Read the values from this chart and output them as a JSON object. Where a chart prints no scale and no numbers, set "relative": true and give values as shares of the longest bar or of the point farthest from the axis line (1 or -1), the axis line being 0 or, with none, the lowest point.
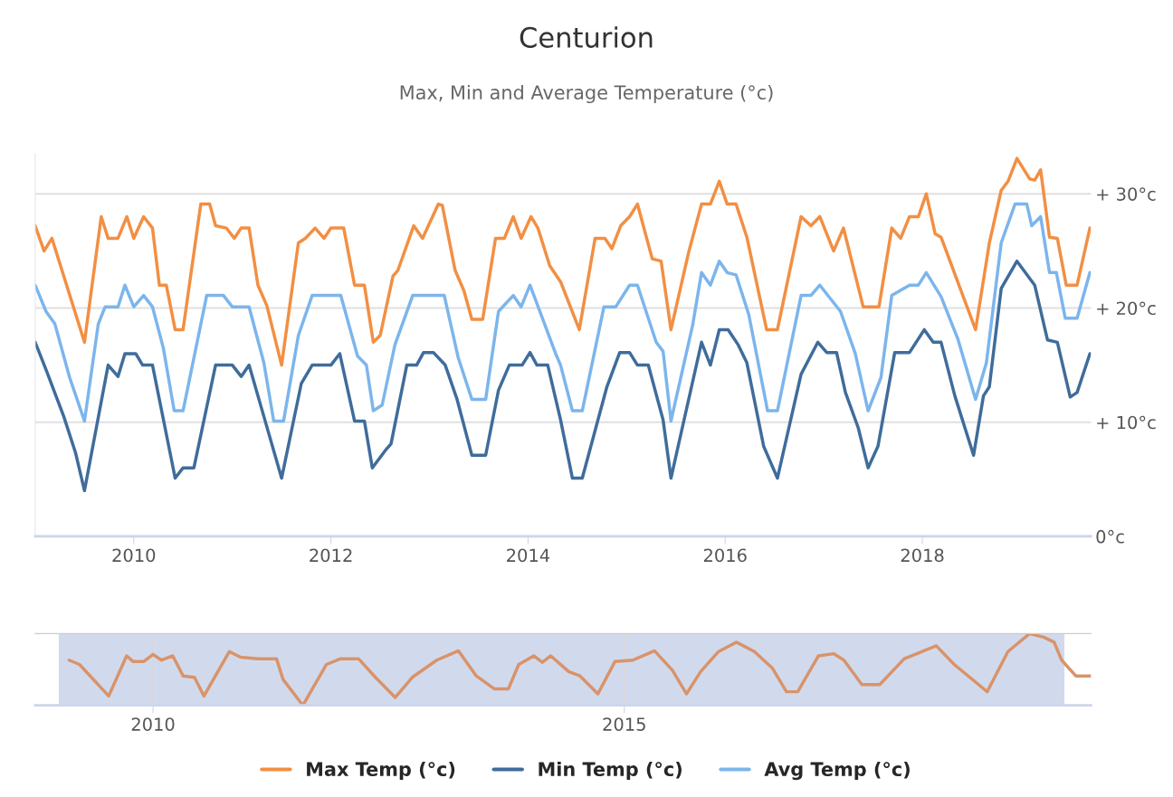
{
  "chart_data": [
    {
      "type": "line",
      "title": "Centurion",
      "subtitle": "Max, Min and Average Temperature (°c)",
      "xlim": [
        2009.0,
        2019.71
      ],
      "xticks": [
        2010,
        2012,
        2014,
        2016,
        2018
      ],
      "ylim": [
        0,
        33.5
      ],
      "yticks": [
        {
          "value": 0,
          "label": "0°c"
        },
        {
          "value": 10,
          "label": "+ 10°c"
        },
        {
          "value": 20,
          "label": "+ 20°c"
        },
        {
          "value": 30,
          "label": "+ 30°c"
        }
      ],
      "grid": "y",
      "legend": "bottom",
      "series": [
        {
          "name": "Max Temp (°c)",
          "color": "#f28f43",
          "x": [
            2009.0,
            2009.09,
            2009.17,
            2009.5,
            2009.67,
            2009.74,
            2009.84,
            2009.93,
            2010.0,
            2010.1,
            2010.19,
            2010.26,
            2010.33,
            2010.42,
            2010.5,
            2010.68,
            2010.77,
            2010.83,
            2010.94,
            2011.02,
            2011.09,
            2011.17,
            2011.26,
            2011.35,
            2011.5,
            2011.67,
            2011.74,
            2011.84,
            2011.93,
            2012.0,
            2012.13,
            2012.24,
            2012.34,
            2012.43,
            2012.5,
            2012.63,
            2012.68,
            2012.84,
            2012.93,
            2013.09,
            2013.13,
            2013.26,
            2013.35,
            2013.43,
            2013.54,
            2013.67,
            2013.76,
            2013.85,
            2013.93,
            2014.03,
            2014.1,
            2014.22,
            2014.33,
            2014.52,
            2014.68,
            2014.78,
            2014.85,
            2014.94,
            2015.03,
            2015.11,
            2015.26,
            2015.35,
            2015.45,
            2015.63,
            2015.76,
            2015.85,
            2015.94,
            2016.02,
            2016.11,
            2016.22,
            2016.42,
            2016.53,
            2016.77,
            2016.87,
            2016.96,
            2017.1,
            2017.2,
            2017.4,
            2017.56,
            2017.69,
            2017.78,
            2017.87,
            2017.96,
            2018.04,
            2018.13,
            2018.19,
            2018.54,
            2018.68,
            2018.8,
            2018.87,
            2018.96,
            2019.09,
            2019.14,
            2019.2,
            2019.29,
            2019.37,
            2019.46,
            2019.57,
            2019.7
          ],
          "values": [
            27.2,
            25.0,
            26.1,
            17.0,
            28.0,
            26.1,
            26.1,
            28.0,
            26.1,
            28.0,
            27.0,
            22.0,
            22.0,
            18.1,
            18.1,
            29.1,
            29.1,
            27.2,
            27.0,
            26.1,
            27.0,
            27.0,
            22.0,
            20.2,
            15.0,
            25.7,
            26.1,
            27.0,
            26.1,
            27.0,
            27.0,
            22.0,
            22.0,
            17.0,
            17.6,
            22.8,
            23.3,
            27.2,
            26.1,
            29.1,
            29.0,
            23.3,
            21.5,
            19.0,
            19.0,
            26.1,
            26.1,
            28.0,
            26.1,
            28.0,
            27.0,
            23.7,
            22.3,
            18.1,
            26.1,
            26.1,
            25.2,
            27.2,
            28.0,
            29.1,
            24.3,
            24.1,
            18.1,
            24.9,
            29.1,
            29.1,
            31.1,
            29.1,
            29.1,
            26.2,
            18.1,
            18.1,
            28.0,
            27.2,
            28.0,
            25.0,
            27.0,
            20.1,
            20.1,
            27.0,
            26.1,
            28.0,
            28.0,
            30.0,
            26.5,
            26.2,
            18.1,
            25.7,
            30.3,
            31.1,
            33.1,
            31.3,
            31.2,
            32.1,
            26.2,
            26.1,
            22.0,
            22.0,
            27.0
          ]
        },
        {
          "name": "Min Temp (°c)",
          "color": "#3f6c9b",
          "x": [
            2009.0,
            2009.11,
            2009.29,
            2009.41,
            2009.5,
            2009.74,
            2009.84,
            2009.91,
            2010.02,
            2010.09,
            2010.19,
            2010.42,
            2010.5,
            2010.61,
            2010.83,
            2011.0,
            2011.09,
            2011.17,
            2011.32,
            2011.5,
            2011.7,
            2011.81,
            2012.0,
            2012.09,
            2012.24,
            2012.34,
            2012.42,
            2012.55,
            2012.61,
            2012.77,
            2012.87,
            2012.94,
            2013.04,
            2013.16,
            2013.28,
            2013.43,
            2013.57,
            2013.7,
            2013.81,
            2013.94,
            2014.02,
            2014.09,
            2014.2,
            2014.33,
            2014.45,
            2014.55,
            2014.8,
            2014.93,
            2015.03,
            2015.11,
            2015.22,
            2015.37,
            2015.45,
            2015.76,
            2015.85,
            2015.94,
            2016.03,
            2016.13,
            2016.22,
            2016.39,
            2016.53,
            2016.77,
            2016.94,
            2017.03,
            2017.13,
            2017.22,
            2017.35,
            2017.45,
            2017.55,
            2017.72,
            2017.87,
            2018.02,
            2018.11,
            2018.19,
            2018.33,
            2018.52,
            2018.62,
            2018.68,
            2018.8,
            2018.96,
            2019.14,
            2019.27,
            2019.37,
            2019.5,
            2019.57,
            2019.7
          ],
          "values": [
            17.0,
            14.6,
            10.5,
            7.3,
            4.0,
            15.0,
            14.0,
            16.0,
            16.0,
            15.0,
            15.0,
            5.1,
            6.0,
            6.0,
            15.0,
            15.0,
            14.0,
            15.0,
            10.5,
            5.1,
            13.4,
            15.0,
            15.0,
            16.0,
            10.1,
            10.1,
            6.0,
            7.5,
            8.1,
            15.0,
            15.0,
            16.1,
            16.1,
            15.0,
            12.0,
            7.1,
            7.1,
            12.8,
            15.0,
            15.0,
            16.1,
            15.0,
            15.0,
            10.2,
            5.1,
            5.1,
            13.1,
            16.1,
            16.1,
            15.0,
            15.0,
            10.2,
            5.1,
            17.0,
            15.0,
            18.1,
            18.1,
            16.8,
            15.2,
            7.9,
            5.1,
            14.2,
            17.0,
            16.1,
            16.1,
            12.6,
            9.5,
            6.0,
            7.9,
            16.1,
            16.1,
            18.1,
            17.0,
            17.0,
            12.3,
            7.1,
            12.3,
            13.1,
            21.7,
            24.1,
            22.0,
            17.2,
            17.0,
            12.2,
            12.6,
            16.0
          ]
        },
        {
          "name": "Avg Temp (°c)",
          "color": "#7cb5ec",
          "x": [
            2009.0,
            2009.11,
            2009.2,
            2009.35,
            2009.5,
            2009.64,
            2009.71,
            2009.84,
            2009.91,
            2010.0,
            2010.1,
            2010.19,
            2010.3,
            2010.41,
            2010.5,
            2010.74,
            2010.91,
            2011.0,
            2011.17,
            2011.32,
            2011.42,
            2011.52,
            2011.67,
            2011.81,
            2012.1,
            2012.27,
            2012.36,
            2012.43,
            2012.52,
            2012.65,
            2012.83,
            2013.15,
            2013.29,
            2013.43,
            2013.57,
            2013.7,
            2013.85,
            2013.93,
            2014.02,
            2014.28,
            2014.33,
            2014.45,
            2014.55,
            2014.77,
            2014.89,
            2015.03,
            2015.11,
            2015.3,
            2015.37,
            2015.45,
            2015.67,
            2015.76,
            2015.85,
            2015.94,
            2016.02,
            2016.11,
            2016.24,
            2016.43,
            2016.53,
            2016.77,
            2016.87,
            2016.96,
            2017.17,
            2017.32,
            2017.45,
            2017.58,
            2017.69,
            2017.87,
            2017.96,
            2018.04,
            2018.19,
            2018.36,
            2018.54,
            2018.65,
            2018.8,
            2018.94,
            2019.06,
            2019.11,
            2019.2,
            2019.29,
            2019.36,
            2019.45,
            2019.57,
            2019.7
          ],
          "values": [
            22.0,
            19.7,
            18.6,
            13.9,
            10.1,
            18.6,
            20.1,
            20.1,
            22.0,
            20.1,
            21.1,
            20.1,
            16.5,
            11.0,
            11.0,
            21.1,
            21.1,
            20.1,
            20.1,
            15.2,
            10.1,
            10.1,
            17.6,
            21.1,
            21.1,
            15.8,
            15.0,
            11.0,
            11.5,
            16.8,
            21.1,
            21.1,
            15.7,
            12.0,
            12.0,
            19.7,
            21.1,
            20.1,
            22.0,
            16.0,
            15.0,
            11.0,
            11.0,
            20.1,
            20.1,
            22.0,
            22.0,
            17.0,
            16.2,
            10.1,
            18.5,
            23.1,
            22.0,
            24.1,
            23.1,
            22.9,
            19.4,
            11.0,
            11.0,
            21.1,
            21.1,
            22.0,
            19.7,
            16.0,
            11.0,
            13.9,
            21.1,
            22.0,
            22.0,
            23.1,
            21.0,
            17.3,
            12.0,
            15.2,
            25.7,
            29.1,
            29.1,
            27.2,
            28.0,
            23.1,
            23.1,
            19.1,
            19.1,
            23.1
          ]
        }
      ]
    },
    {
      "type": "line",
      "relative": true,
      "tick_labels": "x",
      "grid": "x",
      "xlim": [
        2008.75,
        2019.95
      ],
      "xticks": [
        2010,
        2015
      ],
      "bands": [
        {
          "axis": "x",
          "from": 2009.0,
          "to": 2019.67,
          "color": "#ccd6eb"
        }
      ],
      "series": [
        {
          "color": "#d9936a",
          "x": [
            2009.11,
            2009.22,
            2009.53,
            2009.72,
            2009.79,
            2009.9,
            2010.0,
            2010.09,
            2010.21,
            2010.32,
            2010.44,
            2010.54,
            2010.81,
            2010.93,
            2011.12,
            2011.31,
            2011.38,
            2011.59,
            2011.84,
            2011.99,
            2012.18,
            2012.36,
            2012.57,
            2012.75,
            2013.01,
            2013.24,
            2013.43,
            2013.62,
            2013.77,
            2013.88,
            2014.04,
            2014.13,
            2014.22,
            2014.41,
            2014.53,
            2014.72,
            2014.9,
            2015.09,
            2015.32,
            2015.51,
            2015.66,
            2015.81,
            2016.0,
            2016.19,
            2016.38,
            2016.57,
            2016.72,
            2016.84,
            2017.06,
            2017.22,
            2017.33,
            2017.52,
            2017.71,
            2017.97,
            2018.16,
            2018.31,
            2018.5,
            2018.85,
            2019.07,
            2019.3,
            2019.45,
            2019.56,
            2019.64,
            2019.79,
            2019.95
          ],
          "values": [
            0.63,
            0.57,
            0.13,
            0.69,
            0.61,
            0.61,
            0.71,
            0.63,
            0.69,
            0.41,
            0.39,
            0.13,
            0.75,
            0.67,
            0.65,
            0.65,
            0.36,
            0,
            0.57,
            0.65,
            0.65,
            0.39,
            0.11,
            0.39,
            0.63,
            0.76,
            0.41,
            0.23,
            0.23,
            0.57,
            0.69,
            0.6,
            0.69,
            0.47,
            0.41,
            0.16,
            0.61,
            0.63,
            0.76,
            0.49,
            0.16,
            0.47,
            0.75,
            0.88,
            0.75,
            0.52,
            0.19,
            0.19,
            0.69,
            0.72,
            0.63,
            0.29,
            0.29,
            0.65,
            0.75,
            0.83,
            0.57,
            0.19,
            0.75,
            1,
            0.95,
            0.88,
            0.63,
            0.41,
            0.41
          ]
        }
      ]
    }
  ]
}
